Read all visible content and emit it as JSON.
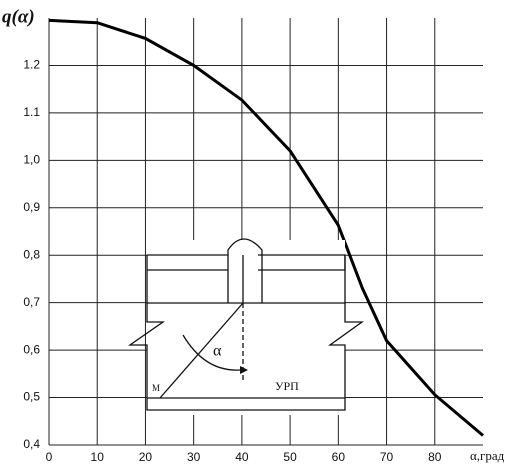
{
  "chart_data": {
    "type": "line",
    "y_label": "q(α)",
    "x_label": "α,град",
    "x": [
      0,
      10,
      20,
      30,
      40,
      50,
      60,
      65,
      70,
      80,
      90
    ],
    "series": [
      {
        "color": "#000000",
        "values": [
          1.295,
          1.29,
          1.257,
          1.2,
          1.127,
          1.02,
          0.863,
          0.73,
          0.62,
          0.506,
          0.42
        ]
      }
    ],
    "xlim": [
      0,
      90
    ],
    "xticks": [
      0,
      10,
      20,
      30,
      40,
      50,
      60,
      70,
      80
    ],
    "ylim": [
      0.4,
      1.3
    ],
    "yticks": [
      {
        "value": 0.4,
        "label": "0,4"
      },
      {
        "value": 0.5,
        "label": "0,5"
      },
      {
        "value": 0.6,
        "label": "0,6"
      },
      {
        "value": 0.7,
        "label": "0,7"
      },
      {
        "value": 0.8,
        "label": "0,8"
      },
      {
        "value": 0.9,
        "label": "0,9"
      },
      {
        "value": 1,
        "label": "1,0"
      },
      1.1,
      1.2
    ],
    "grid": true,
    "diagram_labels": [
      "α",
      "М",
      "УРП"
    ]
  }
}
